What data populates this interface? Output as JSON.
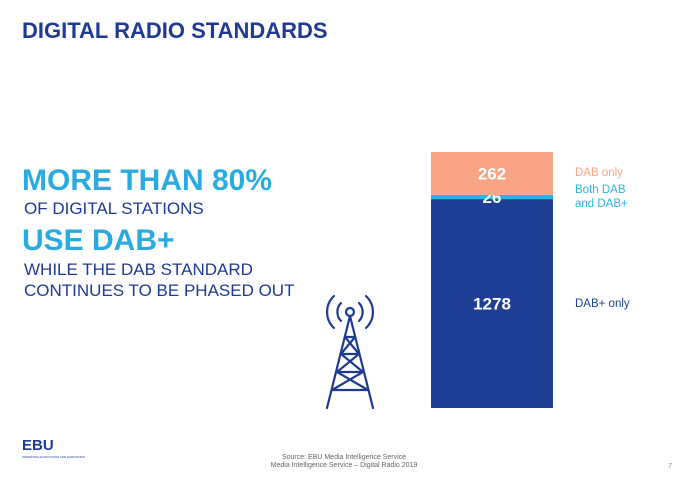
{
  "header": {
    "title": "DIGITAL RADIO STANDARDS"
  },
  "headline": {
    "line1": "MORE THAN 80%",
    "line2": "OF DIGITAL STATIONS",
    "line3": "USE DAB+",
    "line4": "WHILE THE DAB STANDARD",
    "line5": "CONTINUES TO BE PHASED OUT"
  },
  "chart_data": {
    "type": "stacked_bar",
    "categories": [
      null
    ],
    "series": [
      {
        "name": "DAB+ only",
        "color": "#1f3f94",
        "values": [
          1278
        ]
      },
      {
        "name": "Both DAB and DAB+",
        "color": "#2ab4e2",
        "values": [
          26
        ]
      },
      {
        "name": "DAB only",
        "color": "#f7a486",
        "values": [
          262
        ]
      }
    ]
  },
  "footer": {
    "logo": "EBU",
    "tagline": "OPERATING EUROVISION AND EURORADIO",
    "source1": "Source: EBU Media Intelligence Service",
    "source2": "Media Intelligence Service – Digital Radio 2019",
    "page": "7"
  }
}
